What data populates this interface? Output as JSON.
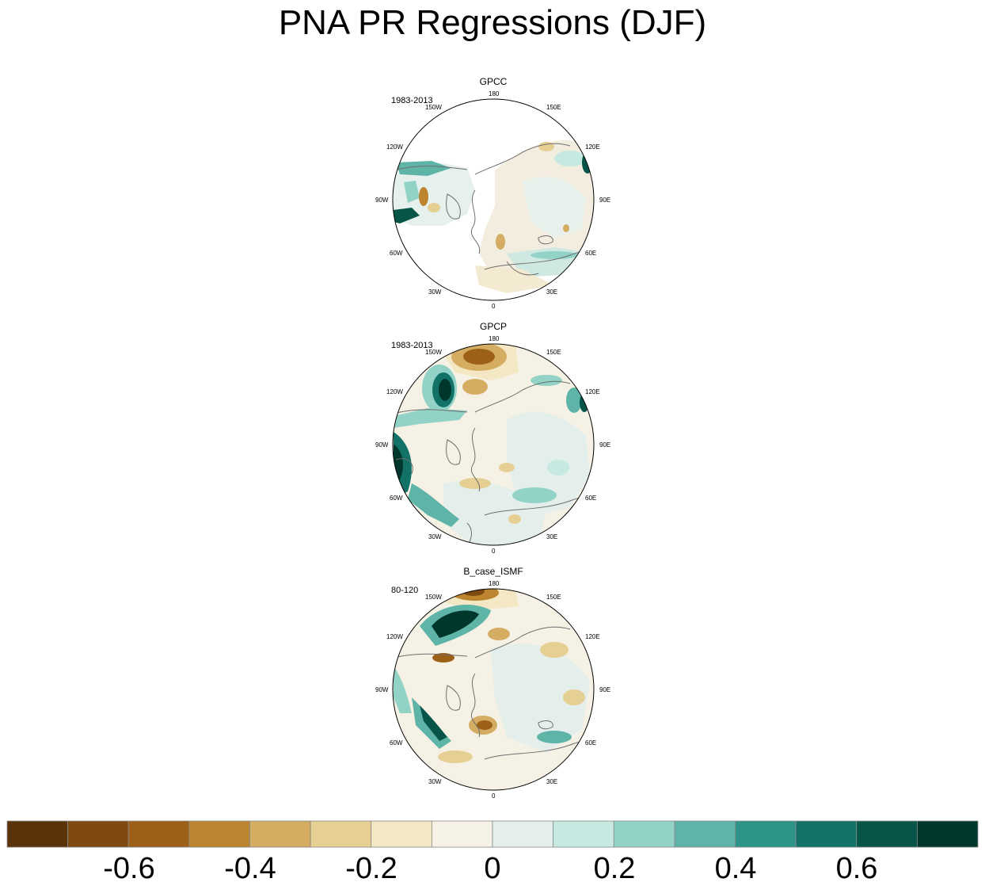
{
  "title": "PNA PR Regressions (DJF)",
  "panels": [
    {
      "name": "GPCC",
      "period": "1983-2013"
    },
    {
      "name": "GPCP",
      "period": "1983-2013"
    },
    {
      "name": "B_case_ISMF",
      "period": "80-120"
    }
  ],
  "longitude_labels": {
    "lon_180": "180",
    "lon_150e": "150E",
    "lon_120e": "120E",
    "lon_90e": "90E",
    "lon_60e": "60E",
    "lon_30e": "30E",
    "lon_0": "0",
    "lon_30w": "30W",
    "lon_60w": "60W",
    "lon_90w": "90W",
    "lon_120w": "120W",
    "lon_150w": "150W"
  },
  "colorbar": {
    "colors": [
      "#5a330b",
      "#7e4a0f",
      "#9c6019",
      "#bd842f",
      "#d4ad62",
      "#e6cf93",
      "#f4e7c4",
      "#f5f1e5",
      "#e4efec",
      "#c6e9e2",
      "#93d3c7",
      "#5fb4a8",
      "#2f9488",
      "#137268",
      "#075548",
      "#00372c"
    ],
    "tick_labels": [
      "-0.6",
      "-0.4",
      "-0.2",
      "0",
      "0.2",
      "0.4",
      "0.6"
    ]
  },
  "palette": {
    "outline": "#6e6e6e",
    "brown": "#c68c3e",
    "teal": "#2f9488"
  }
}
